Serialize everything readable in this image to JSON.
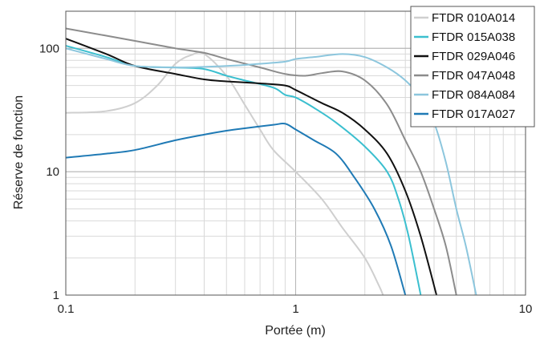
{
  "chart_data": {
    "type": "line",
    "xlabel": "Portée (m)",
    "ylabel": "Réserve de fonction",
    "xscale": "log",
    "yscale": "log",
    "xlim": [
      0.1,
      10
    ],
    "ylim": [
      1,
      200
    ],
    "x_ticks": [
      {
        "value": 0.1,
        "label": "0.1"
      },
      {
        "value": 1,
        "label": "1"
      },
      {
        "value": 10,
        "label": "10"
      }
    ],
    "y_ticks": [
      {
        "value": 1,
        "label": "1"
      },
      {
        "value": 10,
        "label": "10"
      },
      {
        "value": 100,
        "label": "100"
      }
    ],
    "grid": "on (major and minor, log)",
    "legend_position": "top-right",
    "series": [
      {
        "name": "FTDR 010A014",
        "color": "#cfcfcf",
        "points": [
          [
            0.1,
            30
          ],
          [
            0.15,
            31
          ],
          [
            0.2,
            36
          ],
          [
            0.25,
            50
          ],
          [
            0.3,
            75
          ],
          [
            0.35,
            88
          ],
          [
            0.4,
            90
          ],
          [
            0.5,
            60
          ],
          [
            0.6,
            35
          ],
          [
            0.7,
            22
          ],
          [
            0.8,
            15
          ],
          [
            1.0,
            10
          ],
          [
            1.3,
            6
          ],
          [
            1.6,
            3.5
          ],
          [
            2.0,
            2
          ],
          [
            2.3,
            1.2
          ],
          [
            2.4,
            1
          ]
        ]
      },
      {
        "name": "FTDR 015A038",
        "color": "#3bbfcf",
        "points": [
          [
            0.1,
            105
          ],
          [
            0.15,
            85
          ],
          [
            0.2,
            72
          ],
          [
            0.3,
            70
          ],
          [
            0.4,
            68
          ],
          [
            0.5,
            60
          ],
          [
            0.6,
            55
          ],
          [
            0.8,
            48
          ],
          [
            0.9,
            42
          ],
          [
            1.0,
            40
          ],
          [
            1.2,
            33
          ],
          [
            1.5,
            25
          ],
          [
            2.0,
            16
          ],
          [
            2.5,
            10
          ],
          [
            2.8,
            6
          ],
          [
            3.1,
            3
          ],
          [
            3.5,
            1
          ]
        ]
      },
      {
        "name": "FTDR 029A046",
        "color": "#111111",
        "points": [
          [
            0.1,
            120
          ],
          [
            0.15,
            90
          ],
          [
            0.2,
            72
          ],
          [
            0.3,
            62
          ],
          [
            0.4,
            56
          ],
          [
            0.5,
            54
          ],
          [
            0.7,
            52
          ],
          [
            0.9,
            50
          ],
          [
            1.0,
            46
          ],
          [
            1.3,
            36
          ],
          [
            1.6,
            30
          ],
          [
            2.0,
            22
          ],
          [
            2.5,
            14
          ],
          [
            3.0,
            7
          ],
          [
            3.5,
            3
          ],
          [
            4.1,
            1
          ]
        ]
      },
      {
        "name": "FTDR 047A048",
        "color": "#8c8c8c",
        "points": [
          [
            0.1,
            145
          ],
          [
            0.2,
            115
          ],
          [
            0.3,
            100
          ],
          [
            0.4,
            92
          ],
          [
            0.5,
            82
          ],
          [
            0.7,
            70
          ],
          [
            0.9,
            62
          ],
          [
            1.1,
            60
          ],
          [
            1.3,
            63
          ],
          [
            1.6,
            65
          ],
          [
            2.0,
            55
          ],
          [
            2.5,
            35
          ],
          [
            3.0,
            18
          ],
          [
            3.5,
            10
          ],
          [
            4.0,
            5
          ],
          [
            4.5,
            2.5
          ],
          [
            5.0,
            1
          ]
        ]
      },
      {
        "name": "FTDR 084A084",
        "color": "#8cc6dd",
        "points": [
          [
            0.1,
            100
          ],
          [
            0.15,
            82
          ],
          [
            0.2,
            72
          ],
          [
            0.3,
            70
          ],
          [
            0.5,
            72
          ],
          [
            0.7,
            75
          ],
          [
            0.9,
            78
          ],
          [
            1.0,
            82
          ],
          [
            1.2,
            85
          ],
          [
            1.6,
            90
          ],
          [
            2.0,
            85
          ],
          [
            2.5,
            70
          ],
          [
            3.0,
            55
          ],
          [
            3.5,
            40
          ],
          [
            4.0,
            25
          ],
          [
            4.5,
            12
          ],
          [
            5.0,
            5
          ],
          [
            5.5,
            2.5
          ],
          [
            6.1,
            1
          ]
        ]
      },
      {
        "name": "FTDR 017A027",
        "color": "#1f7ab5",
        "points": [
          [
            0.1,
            13
          ],
          [
            0.15,
            14
          ],
          [
            0.2,
            15
          ],
          [
            0.3,
            18
          ],
          [
            0.4,
            20
          ],
          [
            0.5,
            21.5
          ],
          [
            0.6,
            22.5
          ],
          [
            0.8,
            24
          ],
          [
            0.9,
            24.5
          ],
          [
            1.0,
            22
          ],
          [
            1.2,
            18
          ],
          [
            1.5,
            14
          ],
          [
            1.8,
            9
          ],
          [
            2.2,
            5
          ],
          [
            2.6,
            2.5
          ],
          [
            3.0,
            1
          ]
        ]
      }
    ]
  }
}
